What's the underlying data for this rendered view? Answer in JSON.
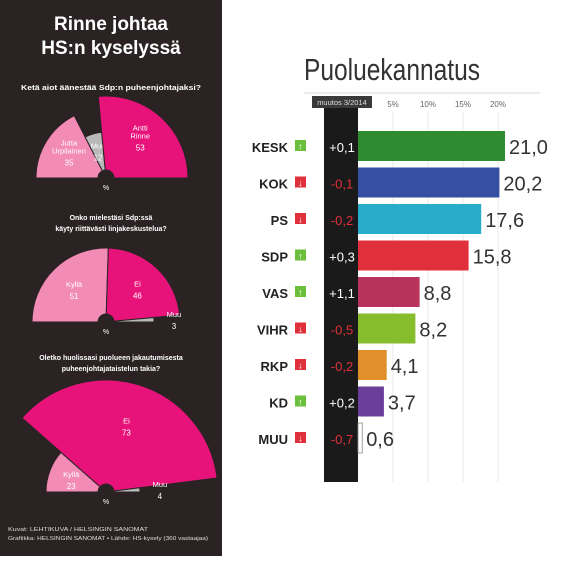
{
  "left_panel": {
    "title_line1": "Rinne johtaa",
    "title_line2": "HS:n kyselyssä",
    "source_line1": "Kuvat: LEHTIKUVA / HELSINGIN SANOMAT",
    "source_line2": "Grafiikka: HELSINGIN SANOMAT • Lähde: HS-kysely (360 vastaajaa)",
    "colors": {
      "background": "#2b2323",
      "pink": "#e8137a",
      "light_pink": "#f28bb6",
      "gray": "#b9b9b9"
    }
  },
  "chart_data": [
    {
      "type": "pie",
      "subtype": "semicircle",
      "title": "Ketä aiot äänestää Sdp:n puheenjohtajaksi?",
      "unit": "%",
      "slices": [
        {
          "label": "Jutta Urpilainen",
          "value": 35,
          "color": "#f28bb6"
        },
        {
          "label": "Muu",
          "value": 12,
          "color": "#b9b9b9"
        },
        {
          "label": "Antti Rinne",
          "value": 53,
          "color": "#e8137a"
        }
      ]
    },
    {
      "type": "pie",
      "subtype": "semicircle",
      "title": "Onko mielestäsi Sdp:ssä käyty riittävästi linjakeskustelua?",
      "unit": "%",
      "slices": [
        {
          "label": "Kyllä",
          "value": 51,
          "color": "#f28bb6"
        },
        {
          "label": "Ei",
          "value": 46,
          "color": "#e8137a"
        },
        {
          "label": "Muu",
          "value": 3,
          "color": "#b9b9b9"
        }
      ]
    },
    {
      "type": "pie",
      "subtype": "semicircle",
      "title": "Oletko huolissasi puolueen jakautumisesta puheenjohtajataistelun takia?",
      "unit": "%",
      "slices": [
        {
          "label": "Kyllä",
          "value": 23,
          "color": "#f28bb6"
        },
        {
          "label": "Ei",
          "value": 73,
          "color": "#e8137a"
        },
        {
          "label": "Muu",
          "value": 4,
          "color": "#b9b9b9"
        }
      ]
    },
    {
      "type": "bar",
      "orientation": "horizontal",
      "title": "Puoluekannatus",
      "change_header": "muutos 3/2014",
      "ticks": [
        "5%",
        "10%",
        "15%",
        "20%"
      ],
      "tick_values": [
        5,
        10,
        15,
        20
      ],
      "xlim": [
        0,
        22
      ],
      "categories": [
        "KESK",
        "KOK",
        "PS",
        "SDP",
        "VAS",
        "VIHR",
        "RKP",
        "KD",
        "MUU"
      ],
      "values": [
        21.0,
        20.2,
        17.6,
        15.8,
        8.8,
        8.2,
        4.1,
        3.7,
        0.6
      ],
      "value_labels": [
        "21,0",
        "20,2",
        "17,6",
        "15,8",
        "8,8",
        "8,2",
        "4,1",
        "3,7",
        "0,6"
      ],
      "changes": [
        "+0,1",
        "-0,1",
        "-0,2",
        "+0,3",
        "+1,1",
        "-0,5",
        "-0,2",
        "+0,2",
        "-0,7"
      ],
      "change_direction": [
        "up",
        "down",
        "down",
        "up",
        "up",
        "down",
        "down",
        "up",
        "down"
      ],
      "colors": [
        "#2f8b2f",
        "#3550a3",
        "#27acc9",
        "#e0303b",
        "#b8325c",
        "#86bd2c",
        "#e08f2a",
        "#6a3e9a",
        "#ffffff"
      ],
      "indicator_colors": {
        "up": "#6bbf3a",
        "down": "#e0303b"
      }
    }
  ]
}
